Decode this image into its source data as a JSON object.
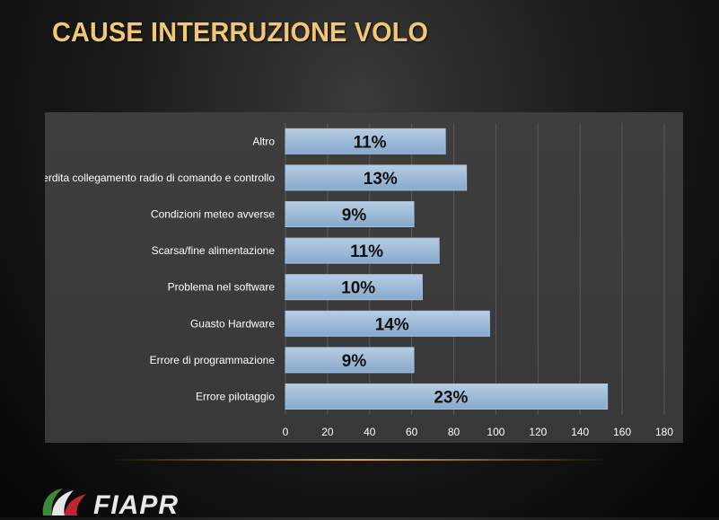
{
  "title": "CAUSE INTERRUZIONE VOLO",
  "logo": {
    "text": "FIAPR",
    "icon": "fiapr-logo-icon"
  },
  "colors": {
    "title": "#f2c873",
    "bar": "#86a9cc",
    "bar_edge": "#b7cde3",
    "axis_text": "#ffffff",
    "grid": "#5a5a5a"
  },
  "chart_data": {
    "type": "bar",
    "orientation": "horizontal",
    "categories": [
      "Altro",
      "Perdita collegamento radio di comando e controllo",
      "Condizioni meteo avverse",
      "Scarsa/fine alimentazione",
      "Problema nel software",
      "Guasto Hardware",
      "Errore di programmazione",
      "Errore pilotaggio"
    ],
    "values": [
      76,
      86,
      61,
      73,
      65,
      97,
      61,
      153
    ],
    "labels": [
      "11%",
      "13%",
      "9%",
      "11%",
      "10%",
      "14%",
      "9%",
      "23%"
    ],
    "xlim": [
      0,
      180
    ],
    "xticks": [
      0,
      20,
      40,
      60,
      80,
      100,
      120,
      140,
      160,
      180
    ],
    "grid": true,
    "legend": "none"
  }
}
